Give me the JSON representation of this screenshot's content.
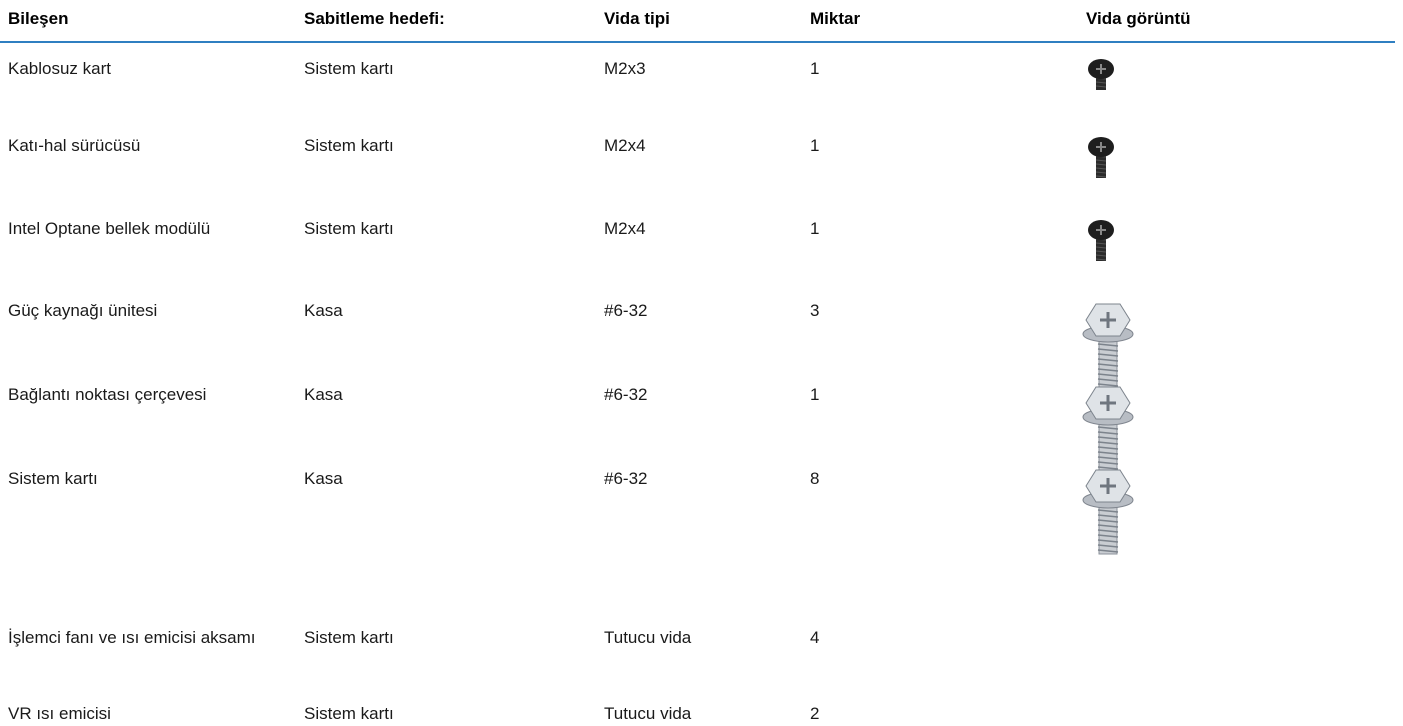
{
  "table": {
    "header": [
      "Bileşen",
      "Sabitleme hedefi:",
      "Vida tipi",
      "Miktar",
      "Vida görüntü"
    ],
    "rows": [
      [
        "Kablosuz kart",
        "Sistem kartı",
        "M2x3",
        "1"
      ],
      [
        "Katı-hal sürücüsü",
        "Sistem kartı",
        "M2x4",
        "1"
      ],
      [
        "Intel Optane bellek modülü",
        "Sistem kartı",
        "M2x4",
        "1"
      ],
      [
        "Güç kaynağı ünitesi",
        "Kasa",
        "#6-32",
        "3"
      ],
      [
        "Bağlantı noktası çerçevesi",
        "Kasa",
        "#6-32",
        "1"
      ],
      [
        "Sistem kartı",
        "Kasa",
        "#6-32",
        "8"
      ],
      [
        "İşlemci fanı ve ısı emicisi aksamı",
        "Sistem kartı",
        "Tutucu vida",
        "4"
      ],
      [
        "VR ısı emicisi",
        "Sistem kartı",
        "Tutucu vida",
        "2"
      ]
    ]
  }
}
